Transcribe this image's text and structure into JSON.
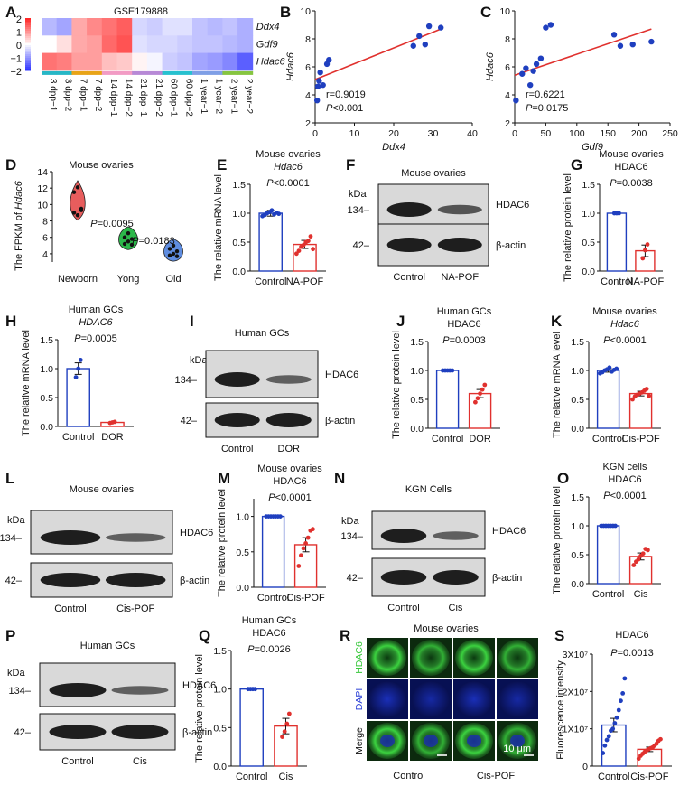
{
  "panels": {
    "A": "A",
    "B": "B",
    "C": "C",
    "D": "D",
    "E": "E",
    "F": "F",
    "G": "G",
    "H": "H",
    "I": "I",
    "J": "J",
    "K": "K",
    "L": "L",
    "M": "M",
    "N": "N",
    "O": "O",
    "P": "P",
    "Q": "Q",
    "R": "R",
    "S": "S"
  },
  "heatmap": {
    "title": "GSE179888",
    "scale_ticks": [
      "2",
      "1",
      "0",
      "−1",
      "−2"
    ],
    "genes": [
      "Ddx4",
      "Gdf9",
      "Hdac6"
    ],
    "samples": [
      "3 dpp−1",
      "3 dpp−2",
      "7 dpp−1",
      "7 dpp−2",
      "14 dpp−1",
      "14 dpp−2",
      "21 dpp−1",
      "21 dpp−2",
      "60 dpp−1",
      "60 dpp−2",
      "1 year−1",
      "1 year−2",
      "2 year−1",
      "2 year−2"
    ],
    "group_colors": [
      "#27b7c6",
      "#27b7c6",
      "#e8a417",
      "#e8a417",
      "#f29bc4",
      "#f29bc4",
      "#b789d6",
      "#b789d6",
      "#27c1cf",
      "#27c1cf",
      "#7f9fe6",
      "#7f9fe6",
      "#86c540",
      "#86c540"
    ],
    "values": [
      [
        -0.7,
        -0.9,
        0.8,
        1.1,
        1.3,
        1.5,
        -0.4,
        -0.5,
        -0.3,
        -0.3,
        -0.6,
        -0.7,
        -0.6,
        -0.8
      ],
      [
        0.0,
        0.3,
        0.8,
        0.9,
        1.4,
        1.6,
        -0.3,
        -0.4,
        -0.4,
        -0.5,
        -0.6,
        -0.6,
        -0.7,
        -0.8
      ],
      [
        1.3,
        1.2,
        0.9,
        0.9,
        0.6,
        0.5,
        0.1,
        -0.1,
        -0.5,
        -0.6,
        -0.9,
        -1.0,
        -1.2,
        -1.6
      ]
    ]
  },
  "chart_data": [
    {
      "panel": "B",
      "type": "scatter",
      "xlabel": "Ddx4",
      "ylabel": "Hdac6",
      "xlim": [
        0,
        40
      ],
      "ylim": [
        2,
        10
      ],
      "xticks": [
        "0",
        "10",
        "20",
        "30",
        "40"
      ],
      "yticks": [
        "2",
        "4",
        "6",
        "8",
        "10"
      ],
      "points": [
        [
          0.5,
          3.6
        ],
        [
          0.7,
          4.6
        ],
        [
          1.0,
          5.0
        ],
        [
          1.3,
          5.6
        ],
        [
          2.0,
          4.7
        ],
        [
          3.0,
          6.2
        ],
        [
          3.5,
          6.5
        ],
        [
          25.0,
          7.5
        ],
        [
          26.5,
          8.2
        ],
        [
          28.0,
          7.6
        ],
        [
          29.0,
          8.9
        ],
        [
          32.0,
          8.8
        ]
      ],
      "fit": [
        [
          0,
          5.1
        ],
        [
          32,
          8.7
        ]
      ],
      "stat_r": "r=0.9019",
      "stat_p_label": "P",
      "stat_p_value": "<0.001"
    },
    {
      "panel": "C",
      "type": "scatter",
      "xlabel": "Gdf9",
      "ylabel": "Hdac6",
      "xlim": [
        0,
        250
      ],
      "ylim": [
        2,
        10
      ],
      "xticks": [
        "0",
        "50",
        "100",
        "150",
        "200",
        "250"
      ],
      "yticks": [
        "2",
        "4",
        "6",
        "8",
        "10"
      ],
      "points": [
        [
          2,
          3.6
        ],
        [
          12,
          5.5
        ],
        [
          18,
          5.9
        ],
        [
          25,
          4.7
        ],
        [
          30,
          5.7
        ],
        [
          35,
          6.2
        ],
        [
          42,
          6.6
        ],
        [
          50,
          8.8
        ],
        [
          58,
          9.0
        ],
        [
          160,
          8.3
        ],
        [
          170,
          7.5
        ],
        [
          190,
          7.6
        ],
        [
          220,
          7.8
        ]
      ],
      "fit": [
        [
          0,
          5.4
        ],
        [
          220,
          8.7
        ]
      ],
      "stat_r": "r=0.6221",
      "stat_p_label": "P",
      "stat_p_value": "=0.0175"
    },
    {
      "panel": "D",
      "type": "violin",
      "title": "Mouse ovaries",
      "ylabel_pre": "The FPKM of ",
      "ylabel_gene": "Hdac6",
      "ylim": [
        3,
        14
      ],
      "yticks": [
        "4",
        "6",
        "8",
        "10",
        "12",
        "14"
      ],
      "categories": [
        "Newborn",
        "Yong",
        "Old"
      ],
      "colors": [
        "#e85d5d",
        "#2cb84a",
        "#5f8de0"
      ],
      "points": [
        [
          9.0,
          8.7,
          9.5,
          11.5,
          12.1,
          9.3
        ],
        [
          5.2,
          5.5,
          5.8,
          6.0,
          6.5,
          5.1
        ],
        [
          3.8,
          4.0,
          4.3,
          4.6,
          5.0,
          3.7
        ]
      ],
      "p_labels": [
        "P=0.0095",
        "P=0.0183"
      ]
    },
    {
      "panel": "E",
      "type": "bar",
      "title": "Mouse ovaries",
      "subtitle": "Hdac6",
      "p_label": "P<0.0001",
      "ylabel": "The relative mRNA level",
      "ylim": [
        0,
        1.5
      ],
      "yticks": [
        "0.0",
        "0.5",
        "1.0",
        "1.5"
      ],
      "categories": [
        "Control",
        "NA-POF"
      ],
      "values": [
        1.0,
        0.46
      ],
      "errors": [
        0.05,
        0.07
      ],
      "points": [
        [
          0.95,
          0.97,
          1.0,
          1.02,
          1.05,
          0.98,
          1.01,
          0.99
        ],
        [
          0.3,
          0.35,
          0.42,
          0.45,
          0.5,
          0.52,
          0.6,
          0.38
        ]
      ]
    },
    {
      "panel": "G",
      "type": "bar",
      "title": "Mouse ovaries",
      "subtitle": "HDAC6",
      "p_label": "P=0.0038",
      "ylabel": "The relative protein level",
      "ylim": [
        0,
        1.5
      ],
      "yticks": [
        "0.0",
        "0.5",
        "1.0",
        "1.5"
      ],
      "categories": [
        "Control",
        "NA-POF"
      ],
      "values": [
        1.0,
        0.35
      ],
      "errors": [
        0.0,
        0.1
      ],
      "points": [
        [
          1.0,
          1.0,
          1.0
        ],
        [
          0.22,
          0.36,
          0.46
        ]
      ]
    },
    {
      "panel": "H",
      "type": "bar",
      "title": "Human GCs",
      "subtitle": "HDAC6",
      "p_label": "P=0.0005",
      "ylabel": "The relative mRNA level",
      "ylim": [
        0,
        1.5
      ],
      "yticks": [
        "0.0",
        "0.5",
        "1.0",
        "1.5"
      ],
      "categories": [
        "Control",
        "DOR"
      ],
      "values": [
        1.0,
        0.07
      ],
      "errors": [
        0.1,
        0.01
      ],
      "points": [
        [
          0.85,
          1.0,
          1.15
        ],
        [
          0.06,
          0.07,
          0.08
        ]
      ]
    },
    {
      "panel": "J",
      "type": "bar",
      "title": "Human GCs",
      "subtitle": "HDAC6",
      "p_label": "P=0.0003",
      "ylabel": "The relative protein level",
      "ylim": [
        0,
        1.5
      ],
      "yticks": [
        "0.0",
        "0.5",
        "1.0",
        "1.5"
      ],
      "categories": [
        "Control",
        "DOR"
      ],
      "values": [
        1.0,
        0.6
      ],
      "errors": [
        0.0,
        0.07
      ],
      "points": [
        [
          1.0,
          1.0,
          1.0,
          1.0,
          1.0
        ],
        [
          0.45,
          0.52,
          0.6,
          0.67,
          0.75
        ]
      ]
    },
    {
      "panel": "K",
      "type": "bar",
      "title": "Mouse ovaries",
      "subtitle": "Hdac6",
      "p_label": "P<0.0001",
      "ylabel": "The relative mRNA level",
      "ylim": [
        0,
        1.5
      ],
      "yticks": [
        "0.0",
        "0.5",
        "1.0",
        "1.5"
      ],
      "categories": [
        "Control",
        "Cis-POF"
      ],
      "values": [
        1.0,
        0.6
      ],
      "errors": [
        0.03,
        0.04
      ],
      "points": [
        [
          0.95,
          0.97,
          1.0,
          1.02,
          1.05,
          0.98,
          1.01,
          1.03
        ],
        [
          0.5,
          0.55,
          0.58,
          0.6,
          0.62,
          0.65,
          0.68,
          0.56
        ]
      ]
    },
    {
      "panel": "M",
      "type": "bar",
      "title": "Mouse ovaries",
      "subtitle": "HDAC6",
      "p_label": "P<0.0001",
      "ylabel": "The relative protein level",
      "ylim": [
        0,
        1.25
      ],
      "yticks": [
        "0.0",
        "0.5",
        "1.0"
      ],
      "categories": [
        "Control",
        "Cis-POF"
      ],
      "values": [
        1.0,
        0.6
      ],
      "errors": [
        0.0,
        0.1
      ],
      "points": [
        [
          1.0,
          1.0,
          1.0,
          1.0,
          1.0,
          1.0,
          1.0
        ],
        [
          0.3,
          0.45,
          0.55,
          0.62,
          0.7,
          0.8,
          0.82
        ]
      ]
    },
    {
      "panel": "O",
      "type": "bar",
      "title": "KGN cells",
      "subtitle": "HDAC6",
      "p_label": "P<0.0001",
      "ylabel": "The relative protein level",
      "ylim": [
        0,
        1.5
      ],
      "yticks": [
        "0.0",
        "0.5",
        "1.0",
        "1.5"
      ],
      "categories": [
        "Control",
        "Cis"
      ],
      "values": [
        1.0,
        0.47
      ],
      "errors": [
        0.0,
        0.06
      ],
      "points": [
        [
          1.0,
          1.0,
          1.0,
          1.0,
          1.0,
          1.0,
          1.0
        ],
        [
          0.32,
          0.38,
          0.42,
          0.48,
          0.52,
          0.6,
          0.58
        ]
      ]
    },
    {
      "panel": "Q",
      "type": "bar",
      "title": "Human GCs",
      "subtitle": "HDAC6",
      "p_label": "P=0.0026",
      "ylabel": "The relative protein level",
      "ylim": [
        0,
        1.5
      ],
      "yticks": [
        "0.0",
        "0.5",
        "1.0",
        "1.5"
      ],
      "categories": [
        "Control",
        "Cis"
      ],
      "values": [
        1.0,
        0.52
      ],
      "errors": [
        0.0,
        0.1
      ],
      "points": [
        [
          1.0,
          1.0,
          1.0,
          1.0
        ],
        [
          0.38,
          0.45,
          0.55,
          0.68
        ]
      ]
    },
    {
      "panel": "S",
      "type": "bar",
      "title": "HDAC6",
      "p_label": "P=0.0013",
      "ylabel": "Fluorescence intensity",
      "ylim": [
        0,
        3
      ],
      "yticks": [
        "0",
        "1X10⁷",
        "2X10⁷",
        "3X10⁷"
      ],
      "categories": [
        "Control",
        "Cis-POF"
      ],
      "values": [
        1.1,
        0.45
      ],
      "errors": [
        0.18,
        0.06
      ],
      "points": [
        [
          0.35,
          0.55,
          0.7,
          0.8,
          0.95,
          1.0,
          1.15,
          1.3,
          1.5,
          1.75,
          1.95,
          2.35
        ],
        [
          0.2,
          0.28,
          0.33,
          0.38,
          0.42,
          0.45,
          0.48,
          0.5,
          0.55,
          0.6,
          0.68,
          0.72
        ]
      ]
    }
  ],
  "westerns": {
    "F": {
      "title": "Mouse ovaries",
      "kda": "kDa",
      "m1": "134",
      "m2": "42",
      "band1": "HDAC6",
      "band2": "β-actin",
      "lanes": [
        "Control",
        "NA-POF"
      ]
    },
    "I": {
      "title": "Human GCs",
      "kda": "kDa",
      "m1": "134",
      "m2": "42",
      "band1": "HDAC6",
      "band2": "β-actin",
      "lanes": [
        "Control",
        "DOR"
      ]
    },
    "L": {
      "title": "Mouse ovaries",
      "kda": "kDa",
      "m1": "134",
      "m2": "42",
      "band1": "HDAC6",
      "band2": "β-actin",
      "lanes": [
        "Control",
        "Cis-POF"
      ]
    },
    "N": {
      "title": "KGN Cells",
      "kda": "kDa",
      "m1": "134",
      "m2": "42",
      "band1": "HDAC6",
      "band2": "β-actin",
      "lanes": [
        "Control",
        "Cis"
      ]
    },
    "P": {
      "title": "Human GCs",
      "kda": "kDa",
      "m1": "134",
      "m2": "42",
      "band1": "HDAC6",
      "band2": "β-actin",
      "lanes": [
        "Control",
        "Cis"
      ]
    }
  },
  "micrograph": {
    "title": "Mouse ovaries",
    "rows": [
      "HDAC6",
      "DAPI",
      "Merge"
    ],
    "groups": [
      "Control",
      "Cis-POF"
    ],
    "scale": "10 μm"
  }
}
